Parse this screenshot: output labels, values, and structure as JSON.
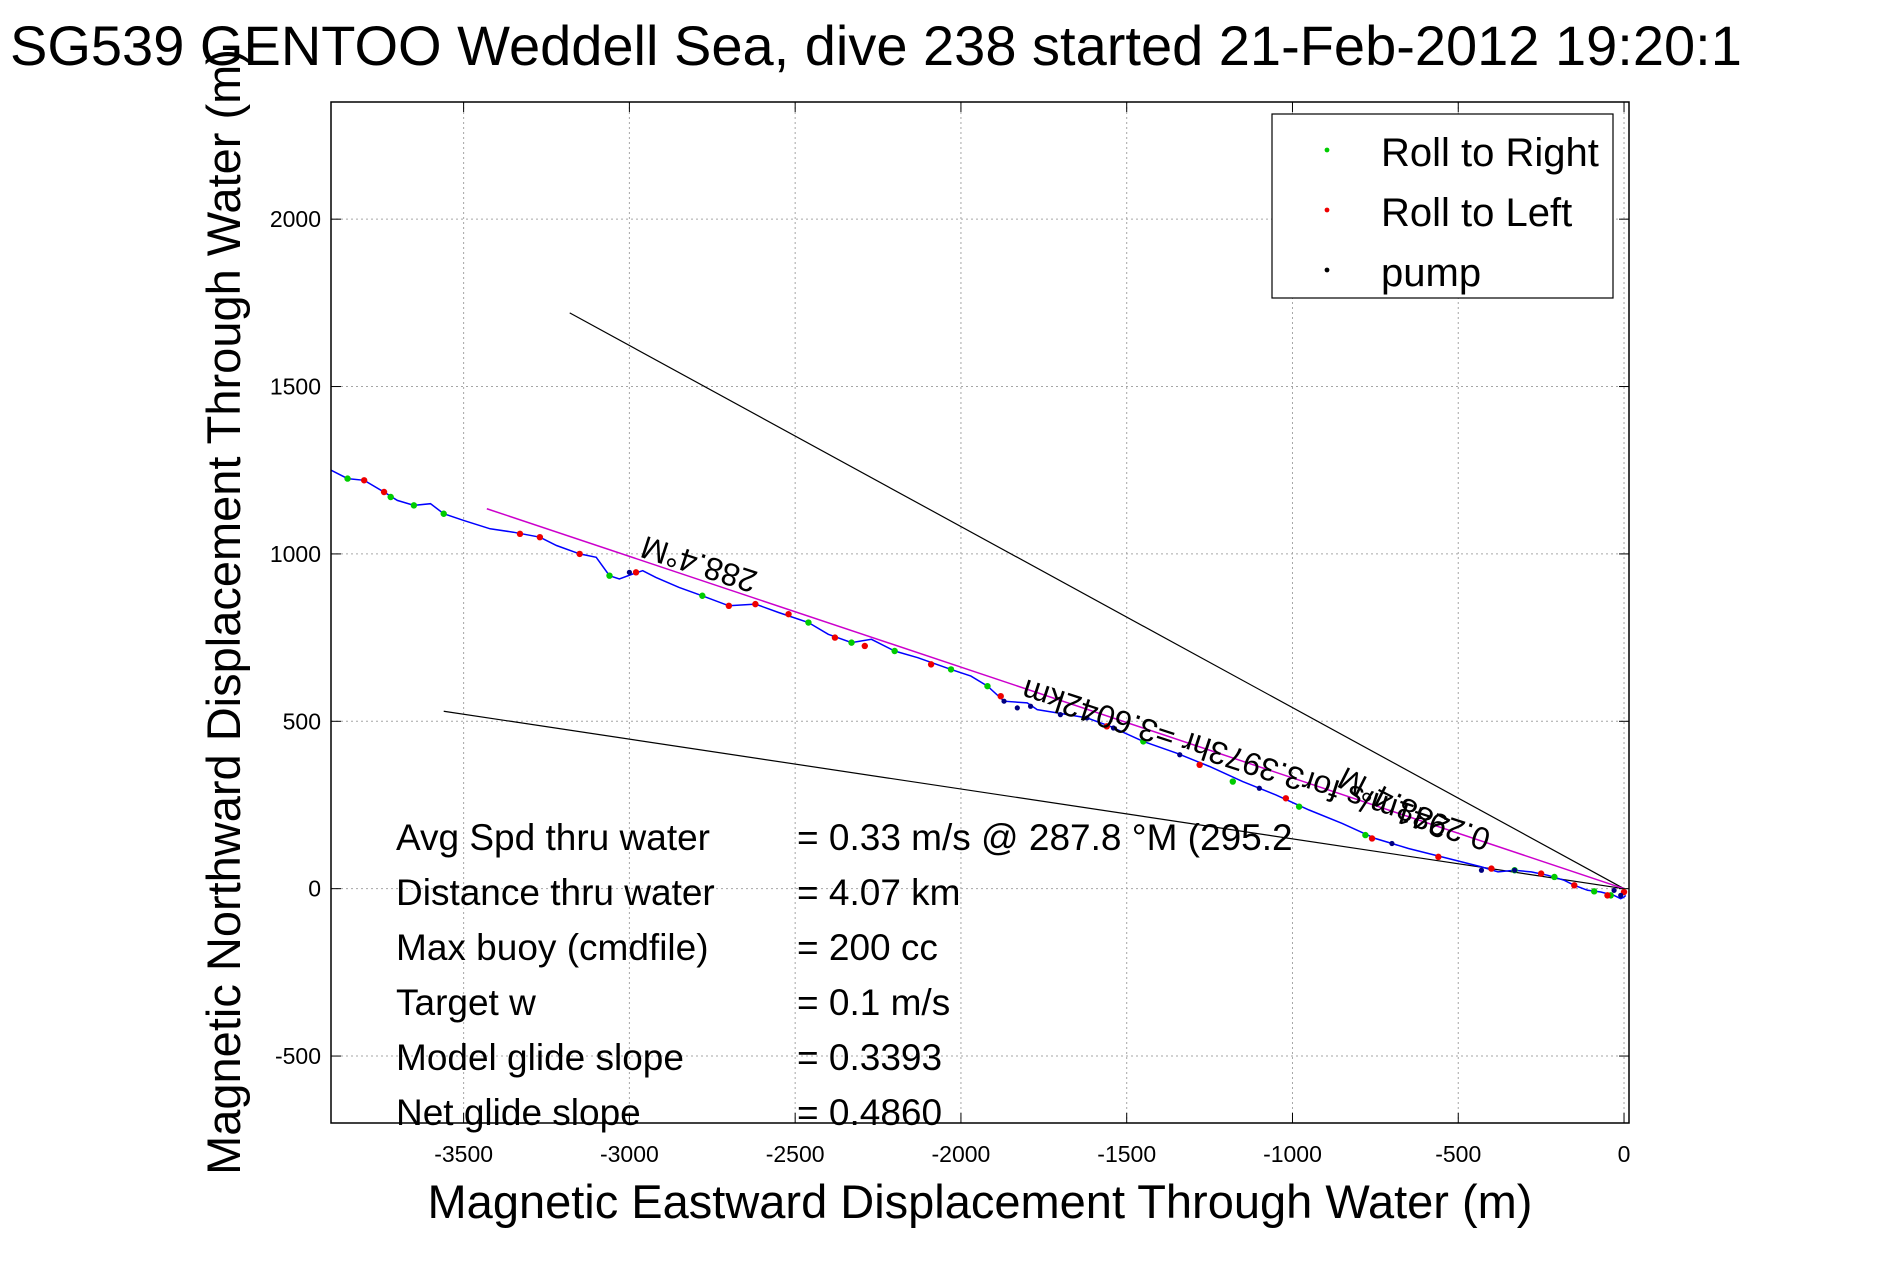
{
  "chart_data": {
    "type": "scatter",
    "title": "SG539 GENTOO Weddell Sea, dive 238 started 21-Feb-2012 19:20:1",
    "xlabel": "Magnetic Eastward Displacement Through Water (m)",
    "ylabel": "Magnetic Northward Displacement Through Water (m)",
    "xlim": [
      -3900,
      15
    ],
    "ylim": [
      -700,
      2350
    ],
    "xticks": [
      -3500,
      -3000,
      -2500,
      -2000,
      -1500,
      -1000,
      -500,
      0
    ],
    "yticks": [
      -500,
      0,
      500,
      1000,
      1500,
      2000
    ],
    "grid": true,
    "legend_position": "top-right",
    "legend": [
      {
        "label": "Roll to Right",
        "color": "#00cc00"
      },
      {
        "label": "Roll to Left",
        "color": "#ee0000"
      },
      {
        "label": "pump",
        "color": "#000000"
      }
    ],
    "track_color": "#0000ff",
    "track": [
      [
        -3900,
        1250
      ],
      [
        -3850,
        1225
      ],
      [
        -3800,
        1220
      ],
      [
        -3740,
        1185
      ],
      [
        -3700,
        1160
      ],
      [
        -3650,
        1145
      ],
      [
        -3600,
        1150
      ],
      [
        -3560,
        1120
      ],
      [
        -3500,
        1100
      ],
      [
        -3420,
        1075
      ],
      [
        -3350,
        1065
      ],
      [
        -3270,
        1050
      ],
      [
        -3220,
        1025
      ],
      [
        -3150,
        1000
      ],
      [
        -3100,
        990
      ],
      [
        -3060,
        935
      ],
      [
        -3030,
        925
      ],
      [
        -2990,
        940
      ],
      [
        -2960,
        950
      ],
      [
        -2920,
        930
      ],
      [
        -2850,
        900
      ],
      [
        -2780,
        875
      ],
      [
        -2700,
        845
      ],
      [
        -2620,
        850
      ],
      [
        -2550,
        825
      ],
      [
        -2460,
        795
      ],
      [
        -2400,
        760
      ],
      [
        -2330,
        735
      ],
      [
        -2270,
        745
      ],
      [
        -2200,
        710
      ],
      [
        -2130,
        690
      ],
      [
        -2030,
        655
      ],
      [
        -1970,
        635
      ],
      [
        -1920,
        605
      ],
      [
        -1870,
        560
      ],
      [
        -1800,
        555
      ],
      [
        -1770,
        535
      ],
      [
        -1710,
        525
      ],
      [
        -1620,
        510
      ],
      [
        -1550,
        485
      ],
      [
        -1450,
        440
      ],
      [
        -1350,
        405
      ],
      [
        -1250,
        365
      ],
      [
        -1150,
        320
      ],
      [
        -1050,
        280
      ],
      [
        -950,
        235
      ],
      [
        -850,
        195
      ],
      [
        -750,
        150
      ],
      [
        -650,
        120
      ],
      [
        -530,
        90
      ],
      [
        -430,
        65
      ],
      [
        -380,
        50
      ],
      [
        -330,
        55
      ],
      [
        -280,
        50
      ],
      [
        -230,
        40
      ],
      [
        -180,
        25
      ],
      [
        -150,
        10
      ],
      [
        -110,
        -5
      ],
      [
        -70,
        -10
      ],
      [
        -30,
        -20
      ],
      [
        -10,
        -30
      ],
      [
        0,
        -25
      ],
      [
        5,
        -20
      ]
    ],
    "roll_right_points": [
      [
        -3850,
        1225
      ],
      [
        -3720,
        1170
      ],
      [
        -3650,
        1145
      ],
      [
        -3560,
        1120
      ],
      [
        -3060,
        935
      ],
      [
        -2780,
        875
      ],
      [
        -2460,
        795
      ],
      [
        -2330,
        735
      ],
      [
        -2200,
        710
      ],
      [
        -2030,
        655
      ],
      [
        -1920,
        605
      ],
      [
        -1450,
        440
      ],
      [
        -1180,
        320
      ],
      [
        -980,
        245
      ],
      [
        -780,
        160
      ],
      [
        -330,
        55
      ],
      [
        -210,
        35
      ],
      [
        -90,
        -8
      ],
      [
        -40,
        -20
      ]
    ],
    "roll_left_points": [
      [
        -3800,
        1220
      ],
      [
        -3740,
        1185
      ],
      [
        -3330,
        1060
      ],
      [
        -3270,
        1050
      ],
      [
        -3150,
        1000
      ],
      [
        -2980,
        945
      ],
      [
        -2700,
        845
      ],
      [
        -2620,
        850
      ],
      [
        -2520,
        820
      ],
      [
        -2380,
        750
      ],
      [
        -2290,
        725
      ],
      [
        -2090,
        670
      ],
      [
        -1880,
        575
      ],
      [
        -1560,
        485
      ],
      [
        -1280,
        370
      ],
      [
        -1020,
        270
      ],
      [
        -760,
        150
      ],
      [
        -560,
        95
      ],
      [
        -400,
        60
      ],
      [
        -250,
        45
      ],
      [
        -150,
        10
      ],
      [
        -50,
        -20
      ],
      [
        0,
        -10
      ]
    ],
    "pump_points": [
      [
        -3000,
        945
      ],
      [
        -1870,
        560
      ],
      [
        -1830,
        540
      ],
      [
        -1790,
        545
      ],
      [
        -1700,
        520
      ],
      [
        -1620,
        510
      ],
      [
        -1540,
        480
      ],
      [
        -1340,
        400
      ],
      [
        -1100,
        300
      ],
      [
        -700,
        135
      ],
      [
        -430,
        55
      ],
      [
        -330,
        55
      ],
      [
        -30,
        -5
      ],
      [
        -10,
        -20
      ]
    ],
    "heading_line_color": "#cc00cc",
    "heading_line": [
      [
        -3430,
        1135
      ],
      [
        0,
        0
      ]
    ],
    "cone_line_color": "#000000",
    "cone_lines": [
      [
        [
          -3180,
          1720
        ],
        [
          0,
          0
        ]
      ],
      [
        [
          -3560,
          530
        ],
        [
          0,
          0
        ]
      ]
    ],
    "annotations": [
      {
        "text": "288.4°M",
        "x": -2780,
        "y": 1000,
        "rotate": 198
      },
      {
        "text": "0.2941m/s for3.3973hr =3.6042km",
        "x": -1100,
        "y": 400,
        "rotate": 198
      },
      {
        "text": "288.4°M",
        "x": -680,
        "y": 285,
        "rotate": 207
      }
    ],
    "stats": [
      {
        "label": "Avg Spd thru water",
        "value": "=  0.33 m/s @ 287.8 °M (295.2"
      },
      {
        "label": "Distance thru water",
        "value": "=  4.07 km"
      },
      {
        "label": "Max buoy (cmdfile)",
        "value": "= 200 cc"
      },
      {
        "label": "Target w",
        "value": "= 0.1 m/s"
      },
      {
        "label": "Model glide slope",
        "value": "= 0.3393"
      },
      {
        "label": "Net glide slope",
        "value": "= 0.4860"
      }
    ]
  }
}
